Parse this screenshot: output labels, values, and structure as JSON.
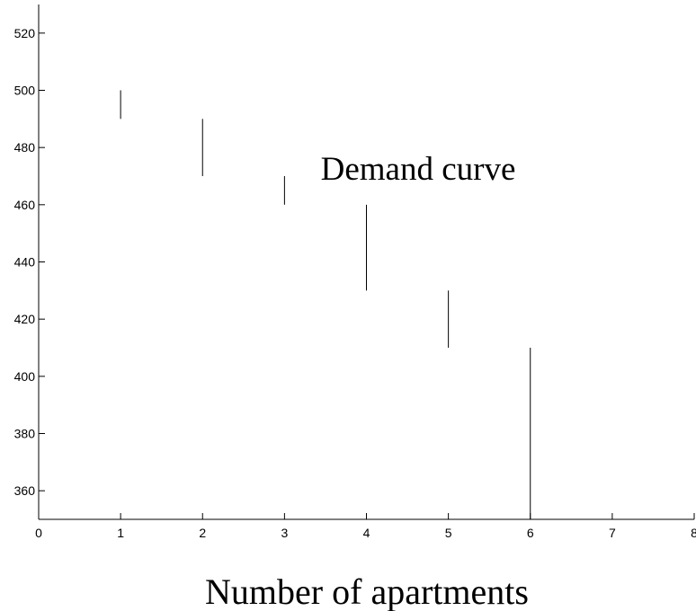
{
  "chart_data": {
    "type": "bar",
    "title": "",
    "xlabel": "Number of apartments",
    "ylabel": "",
    "annotation": "Demand curve",
    "xlim": [
      0,
      8
    ],
    "ylim": [
      350,
      530
    ],
    "x_ticks": [
      0,
      1,
      2,
      3,
      4,
      5,
      6,
      7,
      8
    ],
    "y_ticks": [
      360,
      380,
      400,
      420,
      440,
      460,
      480,
      500,
      520
    ],
    "grid": false,
    "segments": [
      {
        "x": 1,
        "y_low": 490,
        "y_high": 500
      },
      {
        "x": 2,
        "y_low": 470,
        "y_high": 490
      },
      {
        "x": 3,
        "y_low": 460,
        "y_high": 470
      },
      {
        "x": 4,
        "y_low": 430,
        "y_high": 460
      },
      {
        "x": 5,
        "y_low": 410,
        "y_high": 430
      },
      {
        "x": 6,
        "y_low": 350,
        "y_high": 410
      }
    ]
  }
}
